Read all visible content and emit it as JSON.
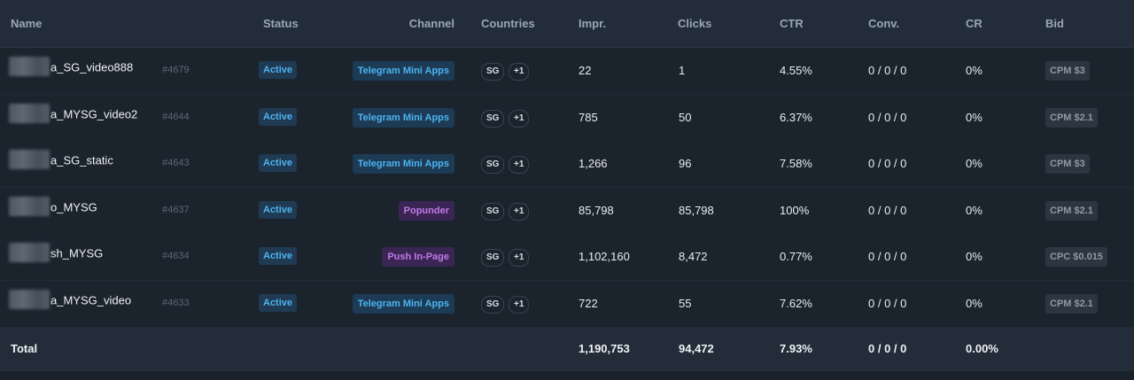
{
  "headers": {
    "name": "Name",
    "status": "Status",
    "channel": "Channel",
    "countries": "Countries",
    "impr": "Impr.",
    "clicks": "Clicks",
    "ctr": "CTR",
    "conv": "Conv.",
    "cr": "CR",
    "bid": "Bid"
  },
  "rows": [
    {
      "name": "a_SG_video888",
      "id": "#4679",
      "status": "Active",
      "channel": "Telegram Mini Apps",
      "channel_type": "telegram",
      "country": "SG",
      "extra": "+1",
      "impr": "22",
      "clicks": "1",
      "ctr": "4.55%",
      "conv": "0 / 0 / 0",
      "cr": "0%",
      "bid": "CPM $3"
    },
    {
      "name": "a_MYSG_video2",
      "id": "#4644",
      "status": "Active",
      "channel": "Telegram Mini Apps",
      "channel_type": "telegram",
      "country": "SG",
      "extra": "+1",
      "impr": "785",
      "clicks": "50",
      "ctr": "6.37%",
      "conv": "0 / 0 / 0",
      "cr": "0%",
      "bid": "CPM $2.1"
    },
    {
      "name": "a_SG_static",
      "id": "#4643",
      "status": "Active",
      "channel": "Telegram Mini Apps",
      "channel_type": "telegram",
      "country": "SG",
      "extra": "+1",
      "impr": "1,266",
      "clicks": "96",
      "ctr": "7.58%",
      "conv": "0 / 0 / 0",
      "cr": "0%",
      "bid": "CPM $3"
    },
    {
      "name": "o_MYSG",
      "id": "#4637",
      "status": "Active",
      "channel": "Popunder",
      "channel_type": "purple",
      "country": "SG",
      "extra": "+1",
      "impr": "85,798",
      "clicks": "85,798",
      "ctr": "100%",
      "conv": "0 / 0 / 0",
      "cr": "0%",
      "bid": "CPM $2.1"
    },
    {
      "name": "sh_MYSG",
      "id": "#4634",
      "status": "Active",
      "channel": "Push In-Page",
      "channel_type": "purple",
      "country": "SG",
      "extra": "+1",
      "impr": "1,102,160",
      "clicks": "8,472",
      "ctr": "0.77%",
      "conv": "0 / 0 / 0",
      "cr": "0%",
      "bid": "CPC $0.015"
    },
    {
      "name": "a_MYSG_video",
      "id": "#4633",
      "status": "Active",
      "channel": "Telegram Mini Apps",
      "channel_type": "telegram",
      "country": "SG",
      "extra": "+1",
      "impr": "722",
      "clicks": "55",
      "ctr": "7.62%",
      "conv": "0 / 0 / 0",
      "cr": "0%",
      "bid": "CPM $2.1"
    }
  ],
  "total": {
    "label": "Total",
    "impr": "1,190,753",
    "clicks": "94,472",
    "ctr": "7.93%",
    "conv": "0 / 0 / 0",
    "cr": "0.00%"
  },
  "colors": {
    "active": "#4fb3ee",
    "telegram": "#4cb4f0",
    "purple": "#c07ae6"
  }
}
